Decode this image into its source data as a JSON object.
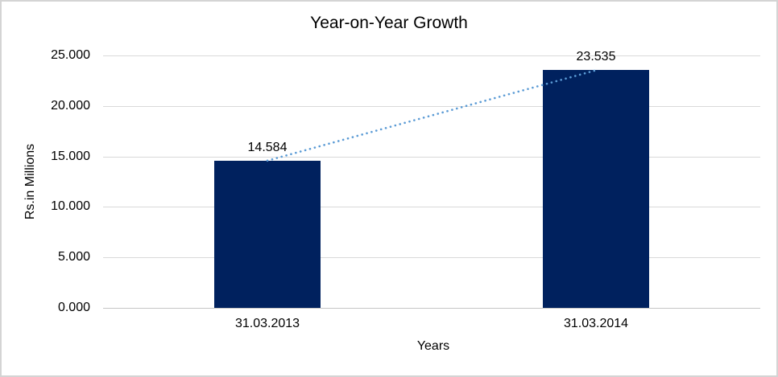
{
  "chart_data": {
    "type": "bar",
    "title": "Year-on-Year Growth",
    "categories": [
      "31.03.2013",
      "31.03.2014"
    ],
    "values": [
      14.584,
      23.535
    ],
    "data_labels": [
      "14.584",
      "23.535"
    ],
    "xlabel": "Years",
    "ylabel": "Rs.in Millions",
    "ylim": [
      0,
      25
    ],
    "ytick_labels": [
      "0.000",
      "5.000",
      "10.000",
      "15.000",
      "20.000",
      "25.000"
    ],
    "grid": true,
    "legend": false,
    "colors": {
      "bar": "#00215e",
      "trendline": "#5b9bd5",
      "gridline": "#d9d9d9",
      "axis_line": "#c6c6c6",
      "frame_border": "#d4d4d4",
      "text": "#000000"
    },
    "trendline": {
      "style": "dotted",
      "connects": "bar-top-centers"
    }
  }
}
